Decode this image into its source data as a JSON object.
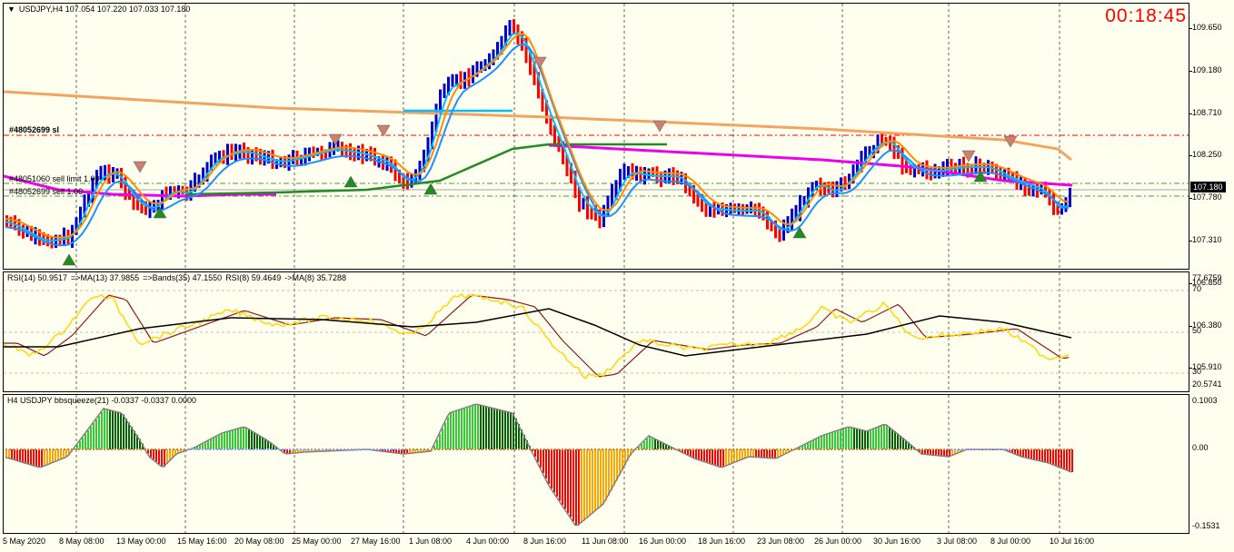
{
  "chart": {
    "symbol_header": "USDJPY,H4  107.054 107.220 107.033 107.180",
    "timer": "00:18:45",
    "current_price": "107.180",
    "price_scale": [
      "109.650",
      "109.180",
      "108.710",
      "108.250",
      "107.780",
      "107.310",
      "106.850",
      "106.380",
      "105.910"
    ],
    "order_lines": {
      "sl": "#48052699 sl",
      "sell_limit": "#48051060 sell limit 1.00",
      "sell": "#48052699 sell 1.00"
    }
  },
  "rsi_panel": {
    "header": [
      "RSI(14) 50.9517",
      "=>MA(13) 37.9855",
      "=>Bands(35) 47.1550",
      "RSI(8) 59.4649",
      "->MA(8) 35.7288"
    ],
    "scale": [
      "77.6759",
      "70",
      "50",
      "30",
      "20.5741"
    ]
  },
  "squeeze_panel": {
    "header": "H4 USDJPY bbsqueeze(21) -0.0337 -0.0337 0.0000",
    "scale": [
      "0.1003",
      "0.00",
      "-0.1531"
    ]
  },
  "time_axis": [
    "5 May 2020",
    "8 May 08:00",
    "13 May 00:00",
    "15 May 16:00",
    "20 May 08:00",
    "25 May 00:00",
    "27 May 16:00",
    "1 Jun 08:00",
    "4 Jun 00:00",
    "8 Jun 16:00",
    "11 Jun 08:00",
    "16 Jun 00:00",
    "18 Jun 16:00",
    "23 Jun 08:00",
    "26 Jun 00:00",
    "30 Jun 16:00",
    "3 Jul 08:00",
    "8 Jul 00:00",
    "10 Jul 16:00"
  ],
  "colors": {
    "bull": "#0000cc",
    "bear": "#ff0000",
    "ma_fast": "#00bfff",
    "ma_mid": "#1e90ff",
    "ma_orange": "#ff8c00",
    "ma_gold": "#ffd700",
    "ma_green": "#228b22",
    "ma_magenta": "#ee00ee",
    "ma_slow": "#f4a460",
    "rsi_yellow": "#ffd700",
    "rsi_brown": "#8b1a1a",
    "rsi_black": "#000000",
    "sq_green": "#32cd32",
    "sq_darkgreen": "#006400",
    "sq_red": "#ff0000",
    "sq_orange": "#ffa500"
  }
}
